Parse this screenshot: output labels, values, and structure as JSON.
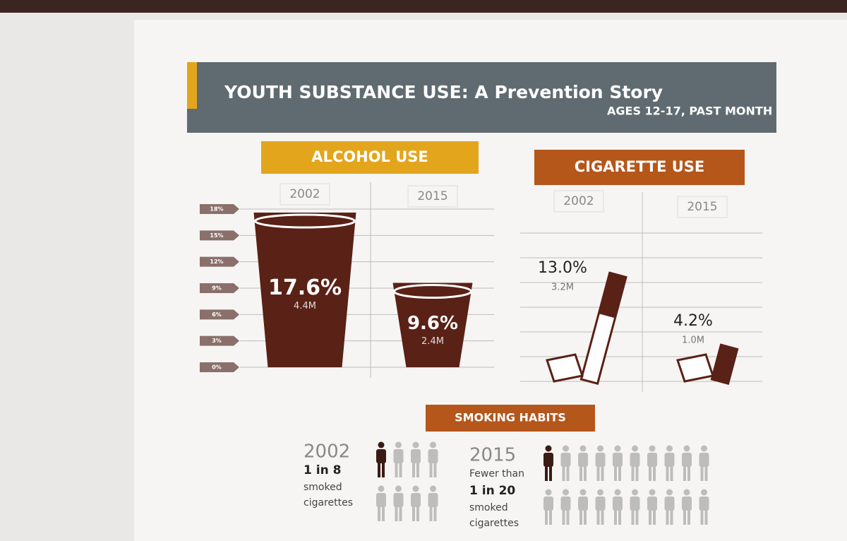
{
  "header": {
    "title": "YOUTH SUBSTANCE USE: A Prevention Story",
    "subtitle": "AGES 12-17, PAST MONTH"
  },
  "chart_data": [
    {
      "type": "cup",
      "title": "ALCOHOL USE",
      "title_color": "#e3a51c",
      "categories": [
        "2002",
        "2015"
      ],
      "values": [
        17.6,
        9.6
      ],
      "value_labels": [
        "17.6%",
        "9.6%"
      ],
      "sublabels": [
        "4.4M",
        "2.4M"
      ],
      "color": "#5a2116",
      "ylim": [
        0,
        18
      ],
      "yticks": [
        {
          "value": 0,
          "label": "0%"
        },
        {
          "value": 3,
          "label": "3%"
        },
        {
          "value": 6,
          "label": "6%"
        },
        {
          "value": 9,
          "label": "9%"
        },
        {
          "value": 12,
          "label": "12%"
        },
        {
          "value": 15,
          "label": "15%"
        },
        {
          "value": 18,
          "label": "18%"
        }
      ],
      "grid": true
    },
    {
      "type": "cigarette",
      "title": "CIGARETTE USE",
      "title_color": "#b5561b",
      "categories": [
        "2002",
        "2015"
      ],
      "values": [
        13.0,
        4.2
      ],
      "value_labels": [
        "13.0%",
        "4.2%"
      ],
      "sublabels": [
        "3.2M",
        "1.0M"
      ],
      "color": "#5a2116",
      "grid": true
    }
  ],
  "smoking_habits": {
    "title": "SMOKING HABITS",
    "groups": [
      {
        "year": "2002",
        "ratio": "1 in 8",
        "caption": [
          "smoked",
          "cigarettes"
        ],
        "icons": 8,
        "highlighted": 1
      },
      {
        "year": "2015",
        "prefix": "Fewer than",
        "ratio": "1 in 20",
        "caption": [
          "smoked",
          "cigarettes"
        ],
        "icons": 20,
        "highlighted": 1
      }
    ]
  }
}
